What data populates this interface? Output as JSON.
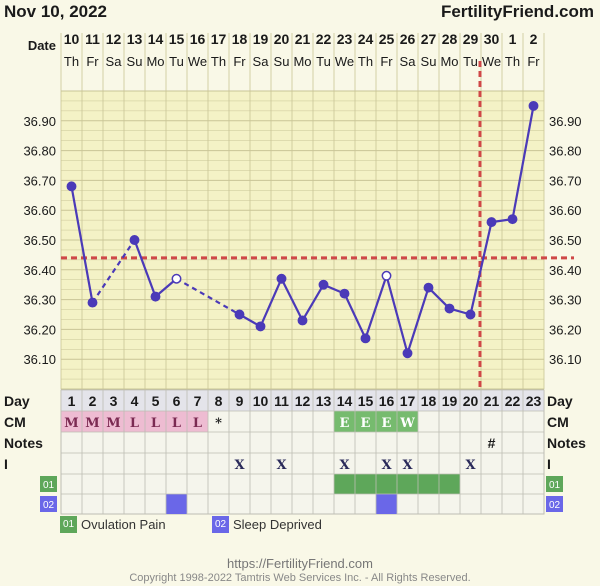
{
  "header": {
    "date": "Nov 10, 2022",
    "site": "FertilityFriend.com"
  },
  "footer": {
    "url": "https://FertilityFriend.com",
    "copyright": "Copyright 1998-2022 Tamtris Web Services Inc. - All Rights Reserved."
  },
  "colors": {
    "line": "#4b3ab8",
    "coverline": "#cf4747",
    "cm_m": "#eebcd2",
    "cm_l": "#eebcd2",
    "cm_e": "#76bb6e",
    "cm_w": "#76bb6e",
    "ovulation_pain": "#5ea75a",
    "sleep_deprived": "#6a67e8"
  },
  "chart_data": {
    "type": "line",
    "row_labels": {
      "date": "Date",
      "day": "Day",
      "cm": "CM",
      "notes": "Notes",
      "intercourse": "I",
      "attr1": "01",
      "attr2": "02"
    },
    "dates": [
      "10",
      "11",
      "12",
      "13",
      "14",
      "15",
      "16",
      "17",
      "18",
      "19",
      "20",
      "21",
      "22",
      "23",
      "24",
      "25",
      "26",
      "27",
      "28",
      "29",
      "30",
      "1",
      "2"
    ],
    "weekdays": [
      "Th",
      "Fr",
      "Sa",
      "Su",
      "Mo",
      "Tu",
      "We",
      "Th",
      "Fr",
      "Sa",
      "Su",
      "Mo",
      "Tu",
      "We",
      "Th",
      "Fr",
      "Sa",
      "Su",
      "Mo",
      "Tu",
      "We",
      "Th",
      "Fr"
    ],
    "cycle_days": [
      "1",
      "2",
      "3",
      "4",
      "5",
      "6",
      "7",
      "8",
      "9",
      "10",
      "11",
      "12",
      "13",
      "14",
      "15",
      "16",
      "17",
      "18",
      "19",
      "20",
      "21",
      "22",
      "23"
    ],
    "temperatures": [
      36.68,
      36.29,
      null,
      36.5,
      36.31,
      36.37,
      null,
      null,
      36.25,
      36.21,
      36.37,
      36.23,
      36.35,
      36.32,
      36.17,
      36.38,
      36.12,
      36.34,
      36.27,
      36.25,
      36.56,
      36.57,
      36.95
    ],
    "open_points": [
      6,
      16
    ],
    "dashed_segments": [
      [
        2,
        4
      ],
      [
        6,
        9
      ]
    ],
    "y_ticks": [
      "36.10",
      "36.20",
      "36.30",
      "36.40",
      "36.50",
      "36.60",
      "36.70",
      "36.80",
      "36.90"
    ],
    "ylim": [
      36.0,
      37.0
    ],
    "coverline": 36.44,
    "ovulation_day": 20,
    "cm": [
      "M",
      "M",
      "M",
      "L",
      "L",
      "L",
      "L",
      "*",
      "",
      "",
      "",
      "",
      "",
      "E",
      "E",
      "E",
      "W",
      "",
      "",
      "",
      "",
      "",
      ""
    ],
    "notes": [
      "",
      "",
      "",
      "",
      "",
      "",
      "",
      "",
      "",
      "",
      "",
      "",
      "",
      "",
      "",
      "",
      "",
      "",
      "",
      "",
      "#",
      "",
      ""
    ],
    "intercourse": [
      "",
      "",
      "",
      "",
      "",
      "",
      "",
      "",
      "X",
      "",
      "X",
      "",
      "",
      "X",
      "",
      "X",
      "X",
      "",
      "",
      "X",
      "",
      "",
      ""
    ],
    "attr1_days": [
      14,
      15,
      16,
      17,
      18,
      19
    ],
    "attr2_days": [
      6,
      16
    ],
    "legend": [
      {
        "code": "01",
        "label": "Ovulation Pain"
      },
      {
        "code": "02",
        "label": "Sleep Deprived"
      }
    ]
  }
}
